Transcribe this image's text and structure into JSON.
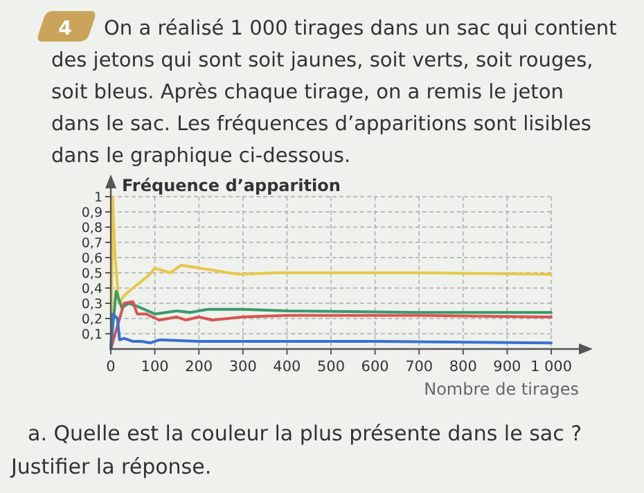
{
  "chart_data": {
    "type": "line",
    "title": "On a réalisé 1 000 tirages dans un sac qui contient des jetons qui sont soit jaunes, soit verts, soit rouges, soit bleus. Après chaque tirage, on a remis le jeton dans le sac. Les fréquences d’apparitions sont lisibles dans le graphique ci-dessous.",
    "ylabel": "Fréquence d’apparition",
    "xlabel": "Nombre de tirages",
    "annotations": [
      "4",
      "a. Quelle est la couleur la plus présente dans le sac ?",
      "Justifier la réponse."
    ],
    "xlim": [
      0,
      1000
    ],
    "xticks": [
      0,
      100,
      200,
      300,
      400,
      500,
      600,
      700,
      800,
      900,
      {
        "value": 1000,
        "label": "1 000"
      }
    ],
    "ylim": [
      0,
      1
    ],
    "yticks": [
      {
        "value": 0.1,
        "label": "0,1"
      },
      {
        "value": 0.2,
        "label": "0,2"
      },
      {
        "value": 0.3,
        "label": "0,3"
      },
      {
        "value": 0.4,
        "label": "0,4"
      },
      {
        "value": 0.5,
        "label": "0,5"
      },
      {
        "value": 0.6,
        "label": "0,6"
      },
      {
        "value": 0.7,
        "label": "0,7"
      },
      {
        "value": 0.8,
        "label": "0,8"
      },
      {
        "value": 0.9,
        "label": "0,9"
      },
      1
    ],
    "grid": true,
    "line_style": "solid",
    "series": [
      {
        "color": "#e8c84a",
        "x": [
          1,
          4,
          10,
          18,
          30,
          50,
          85,
          100,
          135,
          160,
          205,
          290,
          375,
          500,
          700,
          1000
        ],
        "values": [
          0,
          1,
          0.6,
          0.3,
          0.35,
          0.4,
          0.48,
          0.53,
          0.5,
          0.55,
          0.53,
          0.49,
          0.5,
          0.5,
          0.5,
          0.49
        ]
      },
      {
        "color": "#3a9a6a",
        "x": [
          0,
          12,
          25,
          40,
          60,
          100,
          150,
          180,
          220,
          300,
          400,
          700,
          1000
        ],
        "values": [
          0,
          0.38,
          0.27,
          0.3,
          0.28,
          0.23,
          0.25,
          0.24,
          0.26,
          0.26,
          0.25,
          0.24,
          0.24
        ]
      },
      {
        "color": "#d9534f",
        "x": [
          0,
          30,
          50,
          60,
          80,
          110,
          150,
          170,
          200,
          230,
          300,
          400,
          700,
          1000
        ],
        "values": [
          0,
          0.3,
          0.31,
          0.23,
          0.23,
          0.19,
          0.21,
          0.19,
          0.21,
          0.19,
          0.21,
          0.22,
          0.22,
          0.21
        ]
      },
      {
        "color": "#3a6fd0",
        "x": [
          0,
          5,
          15,
          20,
          30,
          50,
          70,
          90,
          110,
          200,
          300,
          600,
          1000
        ],
        "values": [
          0,
          0.23,
          0.2,
          0.06,
          0.07,
          0.05,
          0.05,
          0.04,
          0.06,
          0.05,
          0.05,
          0.05,
          0.04
        ]
      }
    ]
  }
}
